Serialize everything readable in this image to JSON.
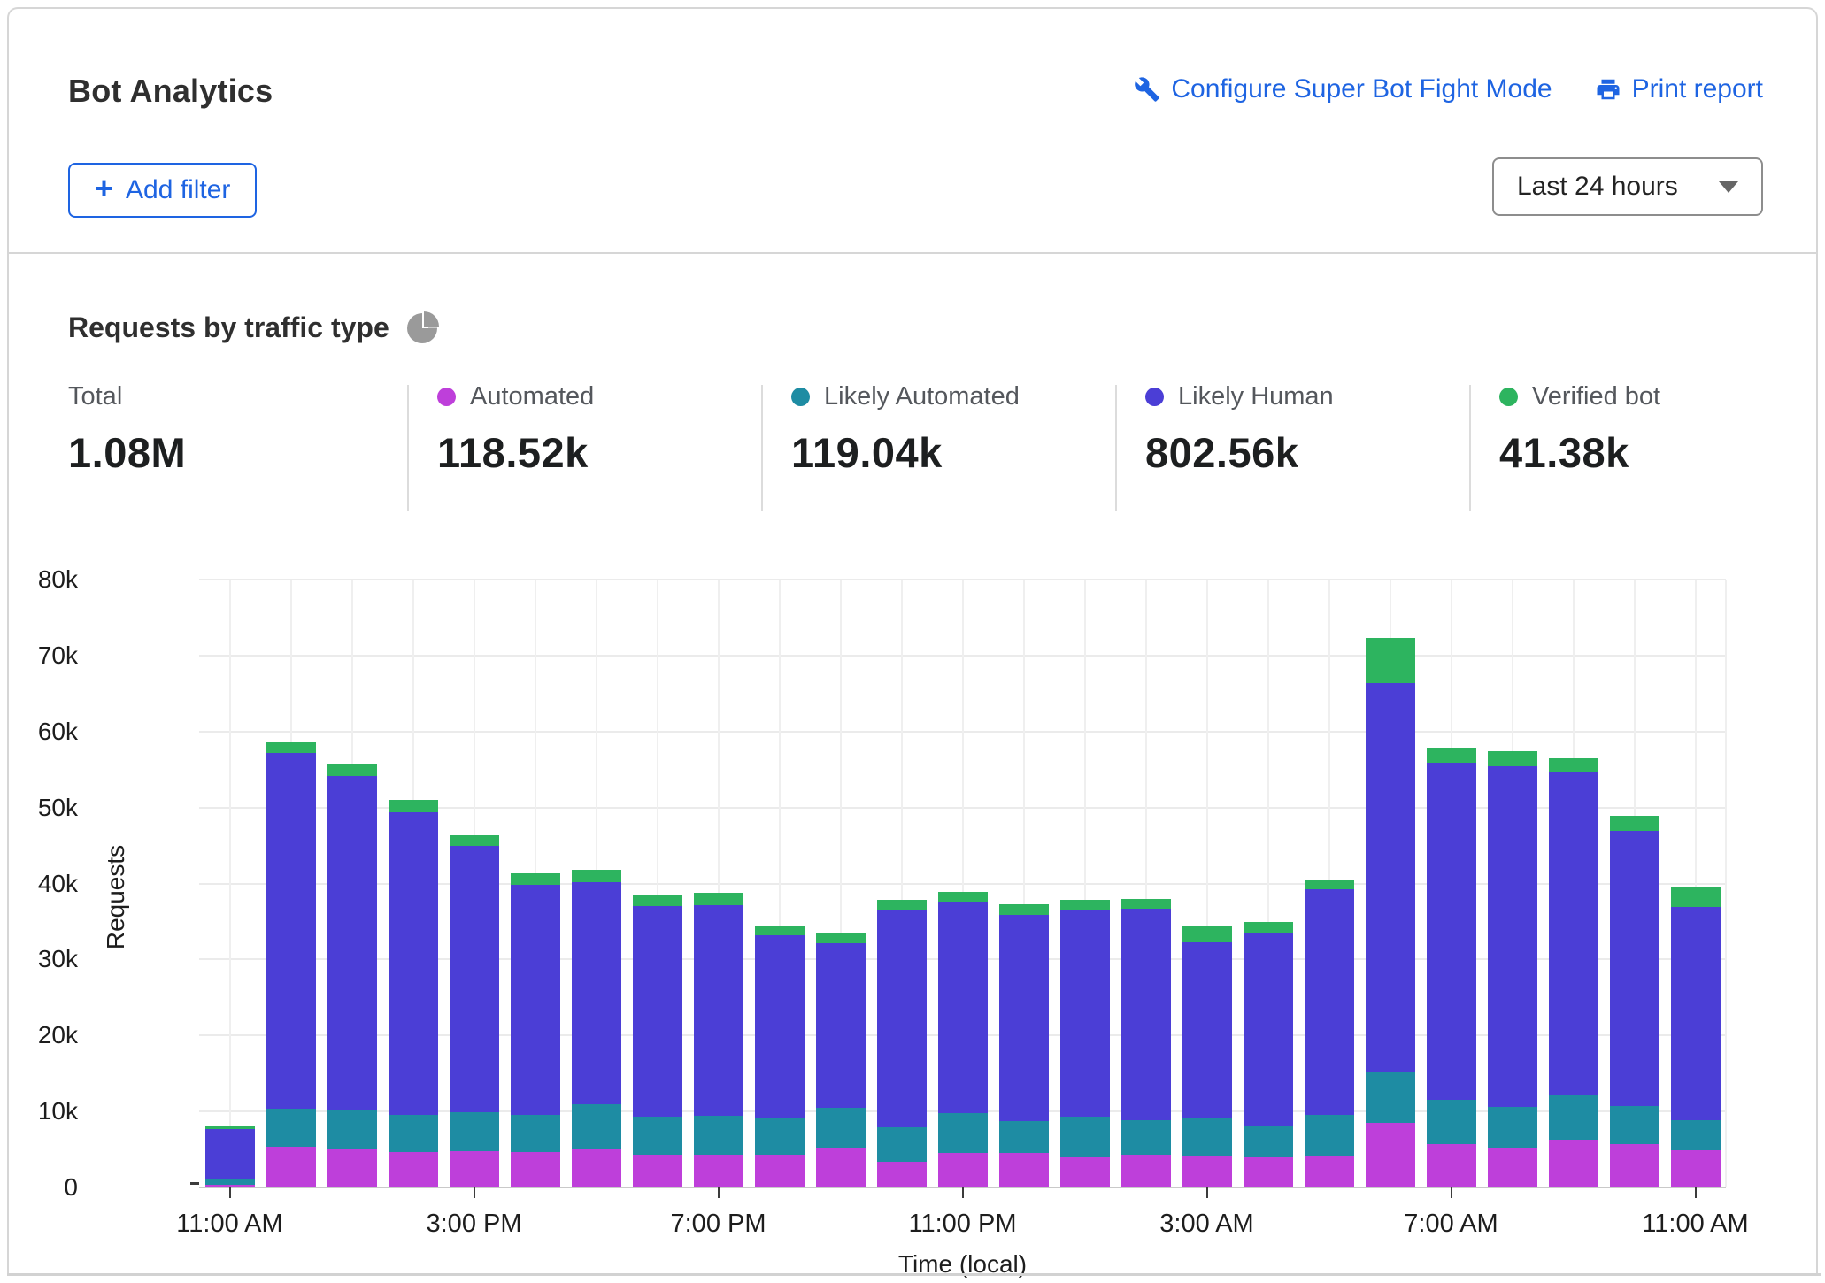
{
  "header": {
    "title": "Bot Analytics",
    "configure_link": "Configure Super Bot Fight Mode",
    "print_link": "Print report",
    "add_filter_plus": "+",
    "add_filter_label": "Add filter"
  },
  "time_range": {
    "value": "Last 24 hours"
  },
  "section": {
    "title": "Requests by traffic type"
  },
  "colors": {
    "link_blue": "#1e64e2",
    "automated": "#be3fda",
    "likely_automated": "#1e8ca3",
    "likely_human": "#4b3ed6",
    "verified_bot": "#2db45f",
    "icon_gray": "#9a9a9a"
  },
  "stats": {
    "items": [
      {
        "label": "Total",
        "value": "1.08M",
        "color": null
      },
      {
        "label": "Automated",
        "value": "118.52k",
        "color": "#be3fda"
      },
      {
        "label": "Likely Automated",
        "value": "119.04k",
        "color": "#1e8ca3"
      },
      {
        "label": "Likely Human",
        "value": "802.56k",
        "color": "#4b3ed6"
      },
      {
        "label": "Verified bot",
        "value": "41.38k",
        "color": "#2db45f"
      }
    ]
  },
  "chart_data": {
    "type": "bar",
    "stacked": true,
    "title": "Requests by traffic type",
    "xlabel": "Time (local)",
    "ylabel": "Requests",
    "ylim": [
      0,
      80000
    ],
    "yticks": [
      0,
      10000,
      20000,
      30000,
      40000,
      50000,
      60000,
      70000,
      80000
    ],
    "ytick_labels": [
      "0",
      "10k",
      "20k",
      "30k",
      "40k",
      "50k",
      "60k",
      "70k",
      "80k"
    ],
    "x_ticks": [
      {
        "index": 0,
        "label": "11:00 AM"
      },
      {
        "index": 4,
        "label": "3:00 PM"
      },
      {
        "index": 8,
        "label": "7:00 PM"
      },
      {
        "index": 12,
        "label": "11:00 PM"
      },
      {
        "index": 16,
        "label": "3:00 AM"
      },
      {
        "index": 20,
        "label": "7:00 AM"
      },
      {
        "index": 24,
        "label": "11:00 AM"
      }
    ],
    "grid": true,
    "series": [
      {
        "name": "Automated",
        "color": "#be3fda",
        "values": [
          400,
          5400,
          5000,
          4700,
          4800,
          4700,
          5000,
          4300,
          4300,
          4300,
          5200,
          3400,
          4600,
          4600,
          4000,
          4300,
          4100,
          4000,
          4100,
          8500,
          5700,
          5300,
          6300,
          5700,
          4900
        ]
      },
      {
        "name": "Likely Automated",
        "color": "#1e8ca3",
        "values": [
          700,
          5000,
          5200,
          4900,
          5100,
          4800,
          6000,
          5000,
          5100,
          4900,
          5300,
          4500,
          5200,
          4100,
          5300,
          4600,
          5100,
          4000,
          5400,
          6700,
          5800,
          5300,
          5900,
          5000,
          4000
        ]
      },
      {
        "name": "Likely Human",
        "color": "#4b3ed6",
        "values": [
          6600,
          46800,
          44000,
          39800,
          35100,
          30300,
          29200,
          27700,
          27800,
          24000,
          21700,
          28500,
          27800,
          27200,
          27100,
          27800,
          23100,
          25500,
          29700,
          51200,
          44400,
          44800,
          42400,
          36200,
          28000
        ]
      },
      {
        "name": "Verified bot",
        "color": "#2db45f",
        "values": [
          300,
          1400,
          1500,
          1600,
          1400,
          1600,
          1600,
          1500,
          1600,
          1200,
          1200,
          1400,
          1300,
          1400,
          1400,
          1300,
          2000,
          1400,
          1300,
          5900,
          2000,
          2000,
          1900,
          2000,
          2700
        ]
      }
    ]
  }
}
